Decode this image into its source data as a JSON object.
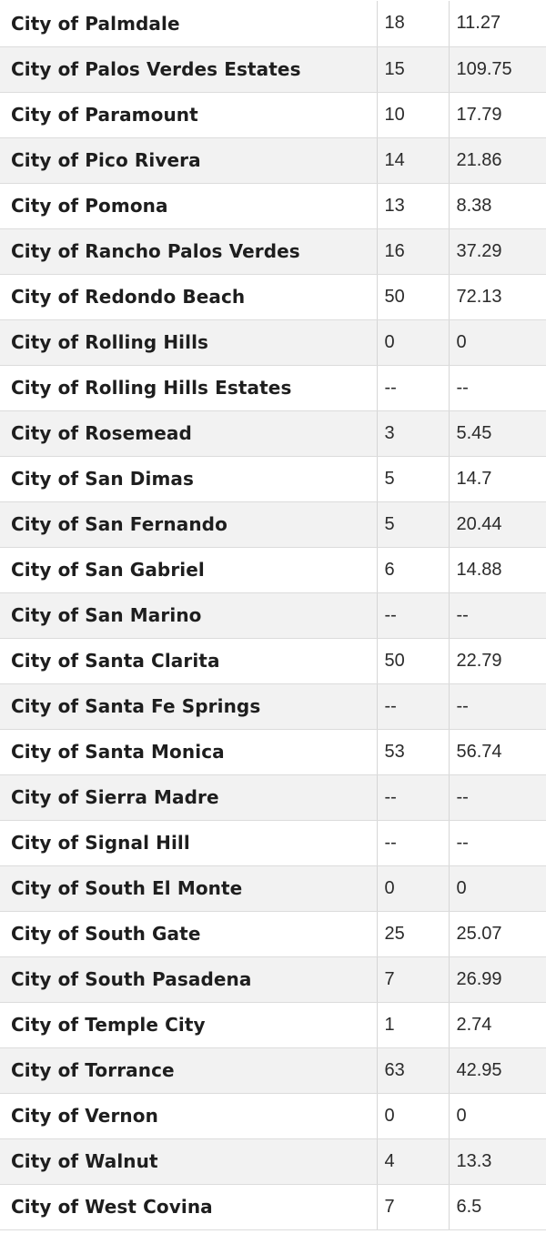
{
  "rows": [
    {
      "city": "City of Palmdale",
      "count": "18",
      "value": "11.27"
    },
    {
      "city": "City of Palos Verdes Estates",
      "count": "15",
      "value": "109.75"
    },
    {
      "city": "City of Paramount",
      "count": "10",
      "value": "17.79"
    },
    {
      "city": "City of Pico Rivera",
      "count": "14",
      "value": "21.86"
    },
    {
      "city": "City of Pomona",
      "count": "13",
      "value": "8.38"
    },
    {
      "city": "City of Rancho Palos Verdes",
      "count": "16",
      "value": "37.29"
    },
    {
      "city": "City of Redondo Beach",
      "count": "50",
      "value": "72.13"
    },
    {
      "city": "City of Rolling Hills",
      "count": "0",
      "value": "0"
    },
    {
      "city": "City of Rolling Hills Estates",
      "count": "--",
      "value": "--"
    },
    {
      "city": "City of Rosemead",
      "count": "3",
      "value": "5.45"
    },
    {
      "city": "City of San Dimas",
      "count": "5",
      "value": "14.7"
    },
    {
      "city": "City of San Fernando",
      "count": "5",
      "value": "20.44"
    },
    {
      "city": "City of San Gabriel",
      "count": "6",
      "value": "14.88"
    },
    {
      "city": "City of San Marino",
      "count": "--",
      "value": "--"
    },
    {
      "city": "City of Santa Clarita",
      "count": "50",
      "value": "22.79"
    },
    {
      "city": "City of Santa Fe Springs",
      "count": "--",
      "value": "--"
    },
    {
      "city": "City of Santa Monica",
      "count": "53",
      "value": "56.74"
    },
    {
      "city": "City of Sierra Madre",
      "count": "--",
      "value": "--"
    },
    {
      "city": "City of Signal Hill",
      "count": "--",
      "value": "--"
    },
    {
      "city": "City of South El Monte",
      "count": "0",
      "value": "0"
    },
    {
      "city": "City of South Gate",
      "count": "25",
      "value": "25.07"
    },
    {
      "city": "City of South Pasadena",
      "count": "7",
      "value": "26.99"
    },
    {
      "city": "City of Temple City",
      "count": "1",
      "value": "2.74"
    },
    {
      "city": "City of Torrance",
      "count": "63",
      "value": "42.95"
    },
    {
      "city": "City of Vernon",
      "count": "0",
      "value": "0"
    },
    {
      "city": "City of Walnut",
      "count": "4",
      "value": "13.3"
    },
    {
      "city": "City of West Covina",
      "count": "7",
      "value": "6.5"
    }
  ]
}
